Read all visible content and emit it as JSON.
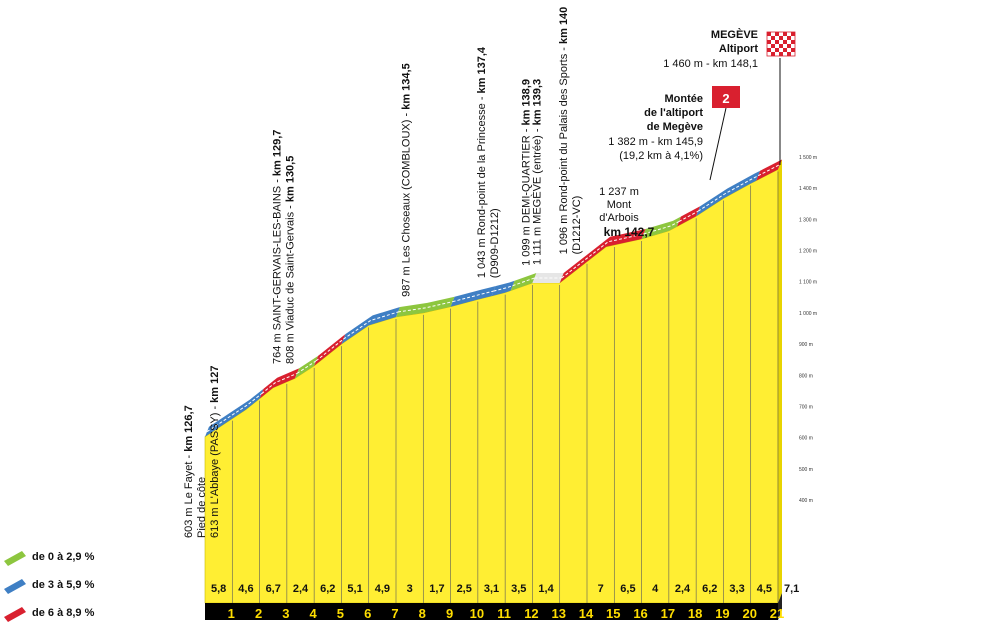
{
  "chart_data": {
    "type": "area",
    "title": "",
    "xlabel": "",
    "ylabel": "",
    "x_unit": "km",
    "xlim": [
      0,
      21
    ],
    "ylim": [
      400,
      1500
    ],
    "y_ticks": [
      "400 m",
      "500 m",
      "600 m",
      "700 m",
      "800 m",
      "900 m",
      "1 000 m",
      "1 100 m",
      "1 200 m",
      "1 300 m",
      "1 400 m",
      "1 500 m"
    ],
    "km_markers": [
      "1",
      "2",
      "3",
      "4",
      "5",
      "6",
      "7",
      "8",
      "9",
      "10",
      "11",
      "12",
      "13",
      "14",
      "15",
      "16",
      "17",
      "18",
      "19",
      "20",
      "21"
    ],
    "segment_gradients": [
      "5,8",
      "4,6",
      "6,7",
      "2,4",
      "6,2",
      "5,1",
      "4,9",
      "3",
      "1,7",
      "2,5",
      "3,1",
      "3,5",
      "1,4",
      "",
      "7",
      "6,5",
      "4",
      "2,4",
      "6,2",
      "3,3",
      "4,5",
      "7,1"
    ],
    "profile": [
      {
        "km": 0,
        "alt": 603
      },
      {
        "km": 1.5,
        "alt": 690
      },
      {
        "km": 2.5,
        "alt": 760
      },
      {
        "km": 3.3,
        "alt": 790
      },
      {
        "km": 4,
        "alt": 830
      },
      {
        "km": 5,
        "alt": 900
      },
      {
        "km": 6,
        "alt": 960
      },
      {
        "km": 7,
        "alt": 987
      },
      {
        "km": 8,
        "alt": 1000
      },
      {
        "km": 9,
        "alt": 1020
      },
      {
        "km": 10,
        "alt": 1043
      },
      {
        "km": 11,
        "alt": 1065
      },
      {
        "km": 12,
        "alt": 1096
      },
      {
        "km": 13,
        "alt": 1096
      },
      {
        "km": 14.7,
        "alt": 1212
      },
      {
        "km": 16,
        "alt": 1237
      },
      {
        "km": 17,
        "alt": 1263
      },
      {
        "km": 18,
        "alt": 1310
      },
      {
        "km": 19,
        "alt": 1367
      },
      {
        "km": 20,
        "alt": 1415
      },
      {
        "km": 21,
        "alt": 1460
      }
    ],
    "colored_segments": [
      {
        "from": 0,
        "to": 2,
        "class": "blue"
      },
      {
        "from": 2,
        "to": 3.3,
        "class": "red"
      },
      {
        "from": 3.3,
        "to": 4,
        "class": "green"
      },
      {
        "from": 4,
        "to": 5,
        "class": "red"
      },
      {
        "from": 5,
        "to": 7,
        "class": "blue"
      },
      {
        "from": 7,
        "to": 9,
        "class": "green"
      },
      {
        "from": 9,
        "to": 10.5,
        "class": "blue"
      },
      {
        "from": 10.5,
        "to": 11.2,
        "class": "blue"
      },
      {
        "from": 11.2,
        "to": 12,
        "class": "green"
      },
      {
        "from": 12,
        "to": 13,
        "class": "white"
      },
      {
        "from": 13,
        "to": 16,
        "class": "red"
      },
      {
        "from": 16,
        "to": 17.3,
        "class": "green"
      },
      {
        "from": 17.3,
        "to": 18,
        "class": "red"
      },
      {
        "from": 18,
        "to": 20.2,
        "class": "blue"
      },
      {
        "from": 20.2,
        "to": 21,
        "class": "red"
      }
    ],
    "legend": [
      {
        "label": "de 0 à 2,9 %",
        "color": "#8dc63f"
      },
      {
        "label": "de 3 à 5,9 %",
        "color": "#3f7fc4"
      },
      {
        "label": "de 6 à 8,9 %",
        "color": "#d9202f"
      }
    ],
    "colors": {
      "fill": "#ffee33",
      "fill_dark": "#e8d400",
      "base": "#000000",
      "green": "#8dc63f",
      "blue": "#3f7fc4",
      "red": "#d9202f",
      "white": "#e6e6e6"
    }
  },
  "waypoints": [
    {
      "id": "le-fayet",
      "km": 0,
      "lines": [
        {
          "text": "603 m Le Fayet - ",
          "bold": "km 126,7"
        },
        {
          "text": "Pied de côte",
          "bold": ""
        },
        {
          "text": "613 m L'Abbaye (PASSY) - ",
          "bold": "km 127"
        }
      ]
    },
    {
      "id": "saint-gervais",
      "km": 3,
      "lines": [
        {
          "text": "764 m SAINT-GERVAIS-LES-BAINS - ",
          "bold": "km 129,7"
        },
        {
          "text": "808 m Viaduc de Saint-Gervais - ",
          "bold": "km 130,5"
        }
      ]
    },
    {
      "id": "les-choseaux",
      "km": 7.5,
      "lines": [
        {
          "text": "987 m Les Choseaux (COMBLOUX) - ",
          "bold": "km 134,5"
        }
      ]
    },
    {
      "id": "rond-point-princesse",
      "km": 10.5,
      "lines": [
        {
          "text": "1 043 m Rond-point de la Princesse - ",
          "bold": "km 137,4"
        },
        {
          "text": "(D909-D1212)",
          "bold": ""
        }
      ]
    },
    {
      "id": "demi-quartier",
      "km": 11.9,
      "lines": [
        {
          "text": "1 099 m DEMI-QUARTIER - ",
          "bold": "km 138,9"
        }
      ]
    },
    {
      "id": "megeve-entree",
      "km": 12.3,
      "lines": [
        {
          "text": "1 111 m MEGÈVE (entrée) - ",
          "bold": "km 139,3"
        }
      ]
    },
    {
      "id": "palais-des-sports",
      "km": 13.5,
      "lines": [
        {
          "text": "1 096 m Rond-point du Palais des Sports - ",
          "bold": "km 140"
        },
        {
          "text": "(D1212-VC)",
          "bold": ""
        }
      ]
    }
  ],
  "mont_arbois": {
    "line1": "1 237 m",
    "line2": "Mont",
    "line3": "d'Arbois",
    "line4": "km 142,7"
  },
  "climb": {
    "category": "2",
    "title1": "Montée",
    "title2": "de l'altiport",
    "title3": "de Megève",
    "stats1": "1 382 m - km 145,9",
    "stats2": "(19,2 km à 4,1%)"
  },
  "finish": {
    "title1": "MEGÈVE",
    "title2": "Altiport",
    "stats": "1 460 m - km 148,1"
  }
}
